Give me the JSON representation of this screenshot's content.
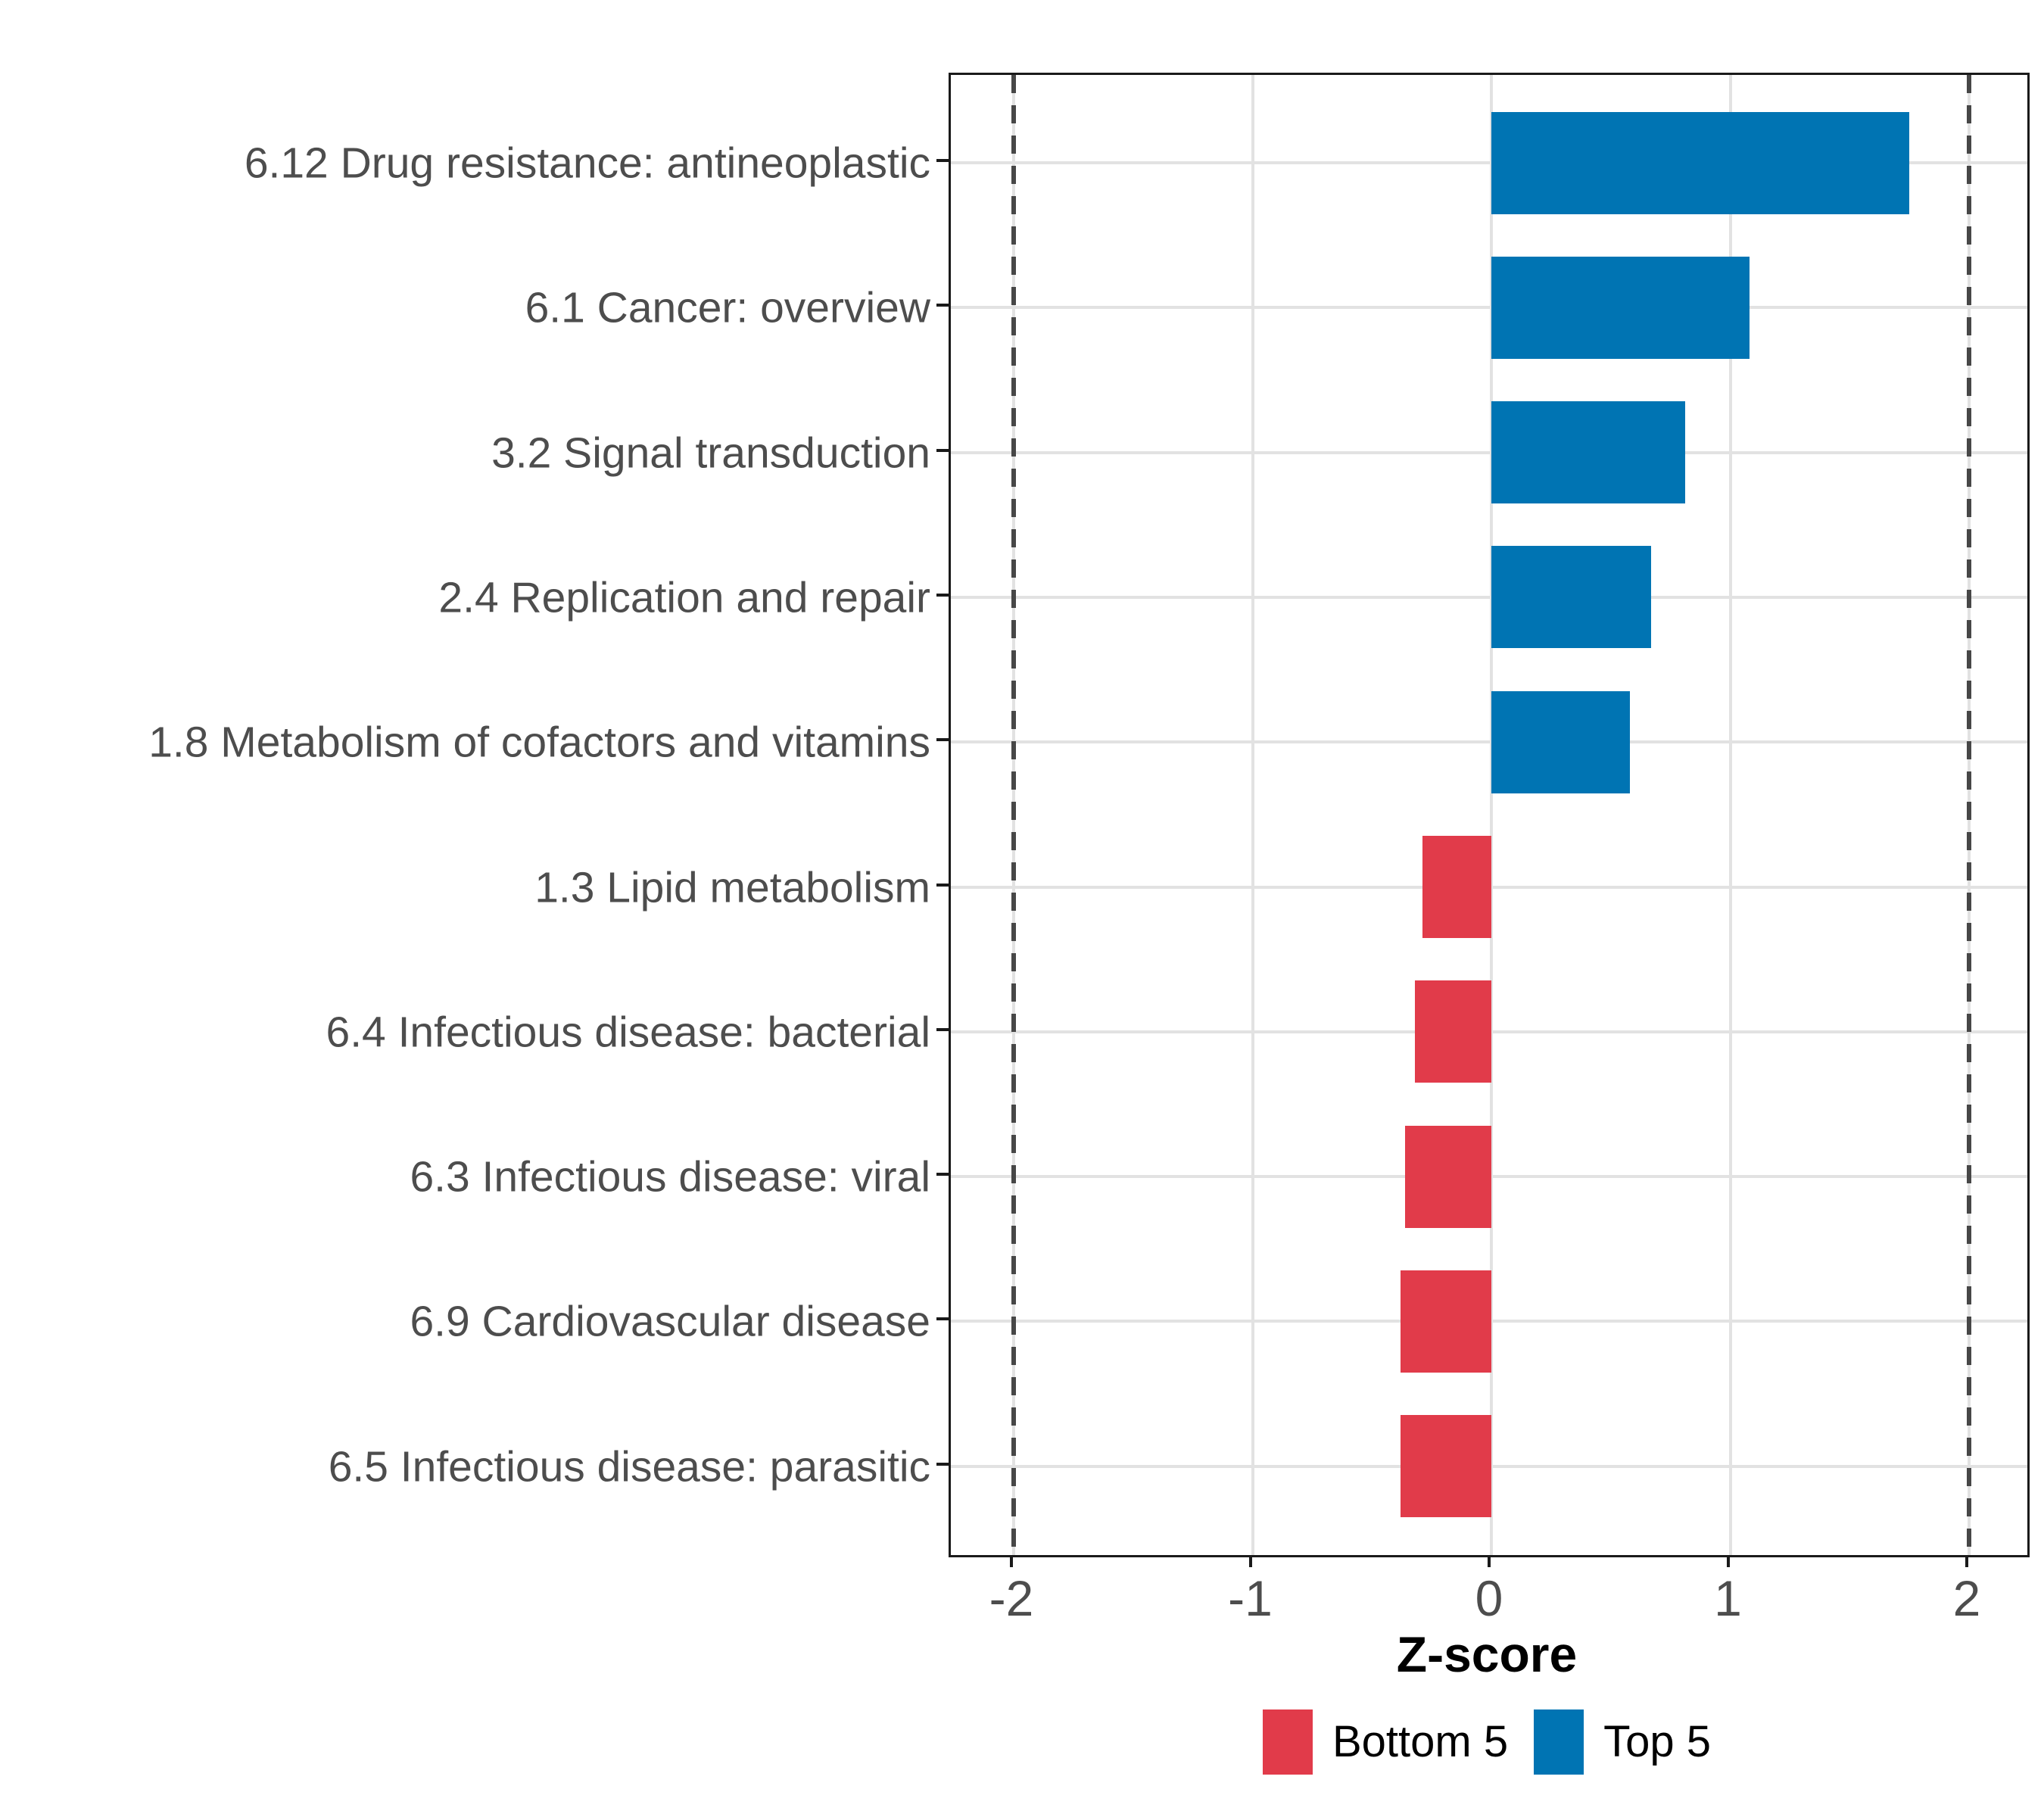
{
  "chart_data": {
    "type": "bar",
    "orientation": "horizontal",
    "title": "",
    "xlabel": "Z-score",
    "ylabel": "",
    "xlim": [
      -2.2,
      2.25
    ],
    "x_ticks": [
      -2,
      -1,
      0,
      1,
      2
    ],
    "x_tick_labels": [
      "-2",
      "-1",
      "0",
      "1",
      "2"
    ],
    "reference_lines_dashed": [
      -2,
      2
    ],
    "grid": true,
    "legend_position": "bottom",
    "categories": [
      "6.12 Drug resistance: antineoplastic",
      "6.1 Cancer: overview",
      "3.2 Signal transduction",
      "2.4 Replication and repair",
      "1.8 Metabolism of cofactors and vitamins",
      "1.3 Lipid metabolism",
      "6.4 Infectious disease: bacterial",
      "6.3 Infectious disease: viral",
      "6.9 Cardiovascular disease",
      "6.5 Infectious disease: parasitic"
    ],
    "values": [
      1.75,
      1.08,
      0.81,
      0.67,
      0.58,
      -0.29,
      -0.32,
      -0.36,
      -0.38,
      -0.38
    ],
    "groups": [
      "Top 5",
      "Top 5",
      "Top 5",
      "Top 5",
      "Top 5",
      "Bottom 5",
      "Bottom 5",
      "Bottom 5",
      "Bottom 5",
      "Bottom 5"
    ],
    "group_colors": {
      "Top 5": "#0074B3",
      "Bottom 5": "#E13B4A"
    },
    "legend": [
      {
        "label": "Bottom 5",
        "color": "#E13B4A"
      },
      {
        "label": "Top 5",
        "color": "#0074B3"
      }
    ]
  }
}
